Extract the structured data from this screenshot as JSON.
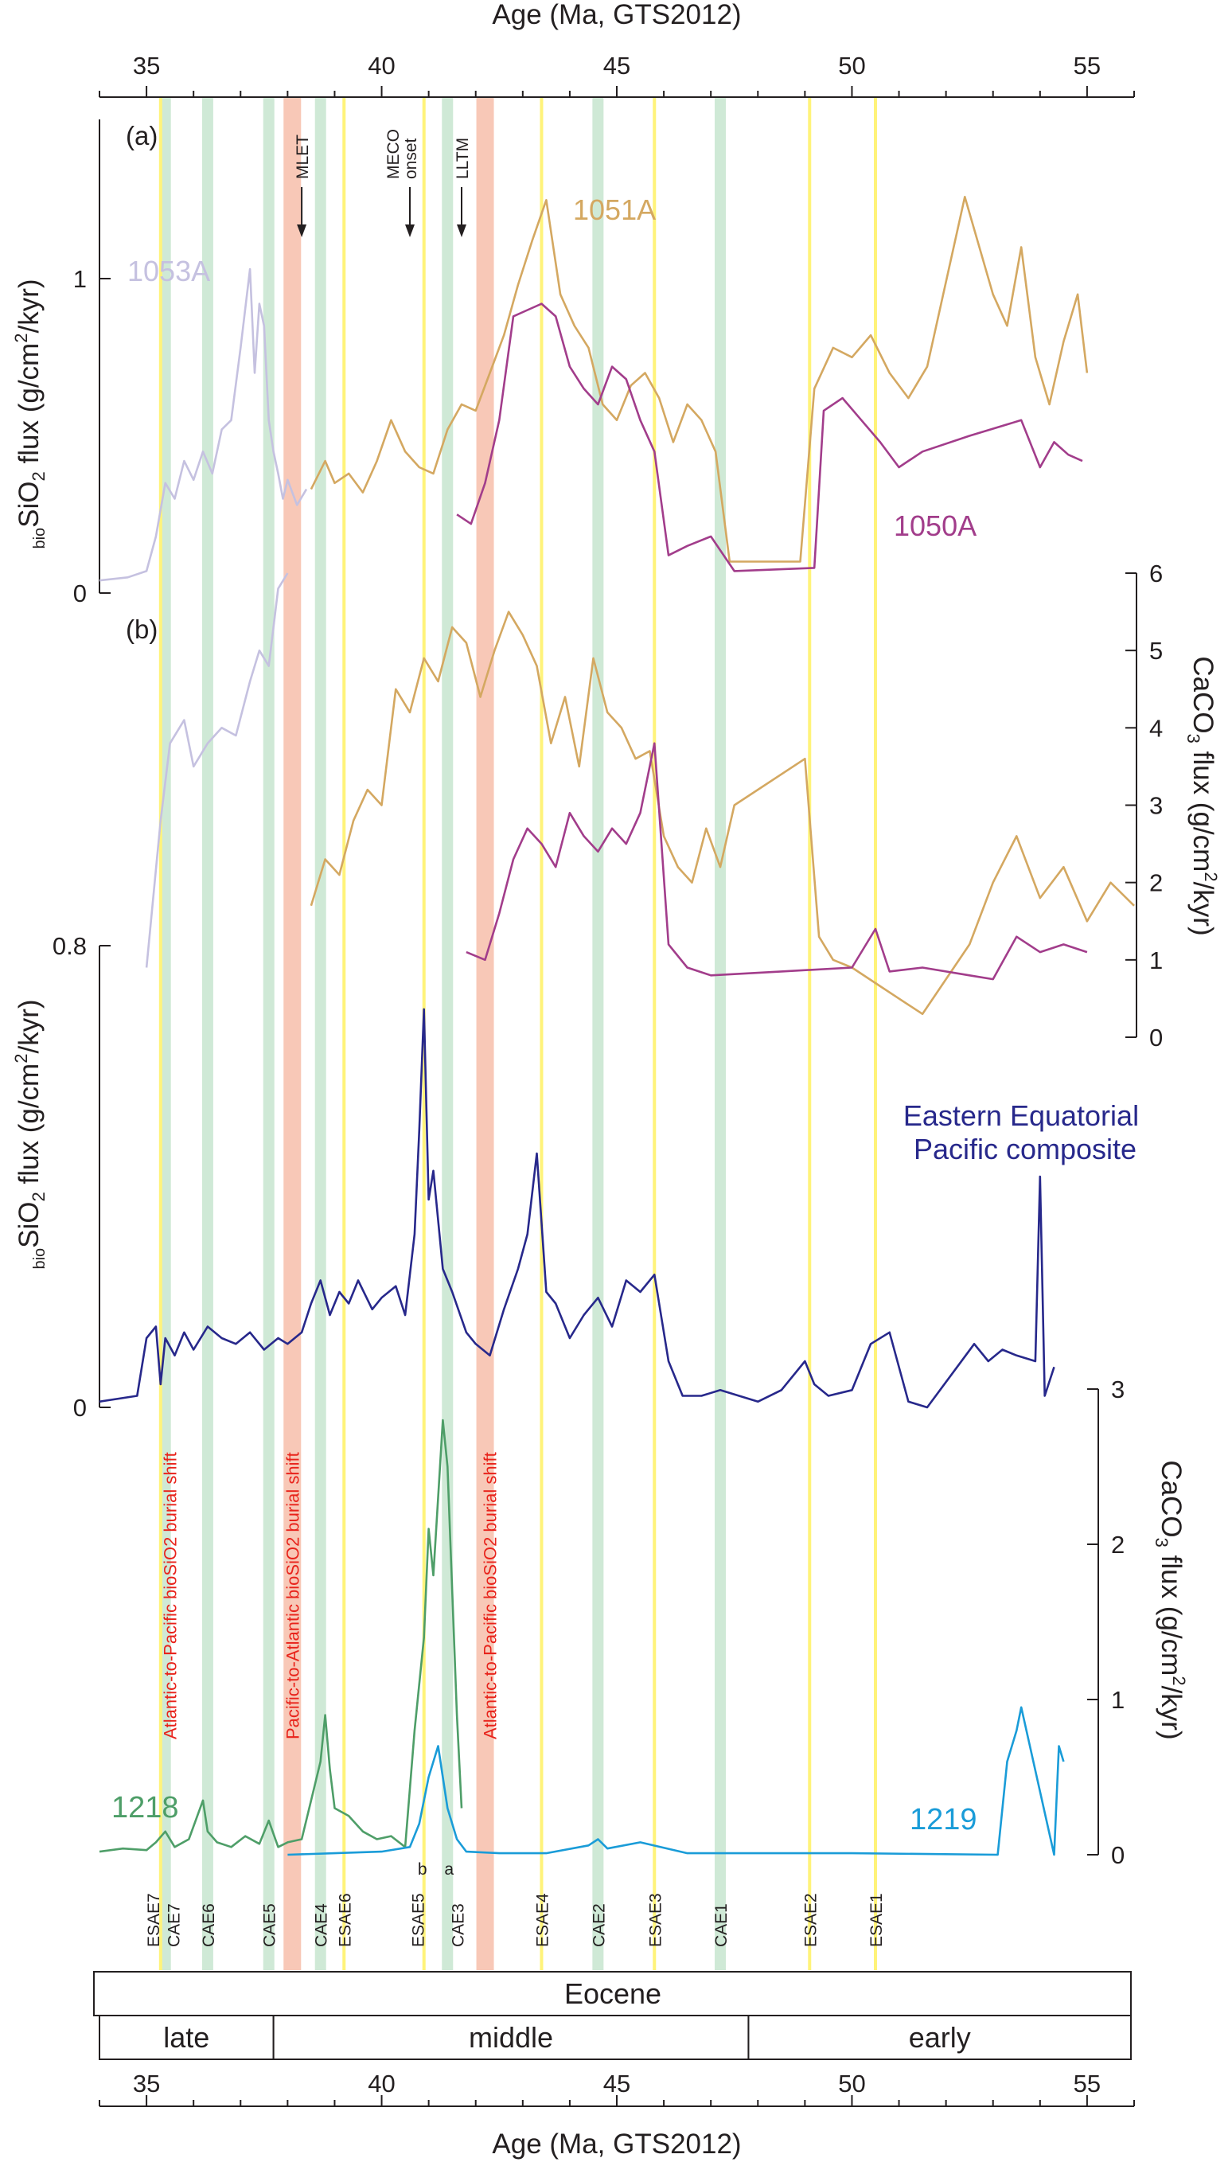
{
  "chart_data": {
    "type": "line",
    "title": "",
    "xlabel_top": "Age (Ma, GTS2012)",
    "xlabel_bottom": "Age (Ma, GTS2012)",
    "xlim": [
      34,
      56
    ],
    "xticks": [
      35,
      40,
      45,
      50,
      55
    ],
    "events": {
      "yellow": [
        {
          "name": "ESAE7",
          "age": 35.3
        },
        {
          "name": "ESAE6",
          "age": 39.2
        },
        {
          "name": "ESAE5",
          "age": 40.9
        },
        {
          "name": "ESAE4",
          "age": 43.4
        },
        {
          "name": "ESAE3",
          "age": 45.8
        },
        {
          "name": "ESAE2",
          "age": 49.1
        },
        {
          "name": "ESAE1",
          "age": 50.5
        }
      ],
      "green": [
        {
          "name": "CAE7",
          "age": 35.4
        },
        {
          "name": "CAE6",
          "age": 36.3
        },
        {
          "name": "CAE5",
          "age": 37.6
        },
        {
          "name": "CAE4",
          "age": 38.7
        },
        {
          "name": "CAE3",
          "age": 41.4
        },
        {
          "name": "CAE2",
          "age": 44.6
        },
        {
          "name": "CAE1",
          "age": 47.2
        }
      ],
      "red": [
        {
          "name": "MLET",
          "age": 38.1
        },
        {
          "name": "LLTM",
          "age": 42.2
        }
      ]
    },
    "event_label_b": "b",
    "event_label_a": "a",
    "arrows": [
      {
        "label": "MLET",
        "age": 38.3
      },
      {
        "label": "MECO onset",
        "age": 40.6
      },
      {
        "label": "LLTM",
        "age": 41.7
      }
    ],
    "burial_labels": [
      {
        "text": "Atlantic-to-Pacific bioSiO2 burial shift",
        "age": 35.5
      },
      {
        "text": "Pacific-to-Atlantic bioSiO2 burial shift",
        "age": 38.1
      },
      {
        "text": "Atlantic-to-Pacific bioSiO2 burial shift",
        "age": 42.3
      }
    ],
    "panels": [
      {
        "id": "a",
        "label": "(a)",
        "ylabel": "bioSiO2 flux (g/cm2/kyr)",
        "ylim": [
          0,
          1.45
        ],
        "yticks": [
          0,
          1
        ],
        "series": [
          {
            "name": "1053A",
            "color": "#c5c1e0",
            "x": [
              34,
              34.6,
              35.0,
              35.2,
              35.4,
              35.6,
              35.8,
              36.0,
              36.2,
              36.4,
              36.6,
              36.8,
              37.0,
              37.2,
              37.3,
              37.4,
              37.5,
              37.6,
              37.7,
              37.8,
              37.9,
              38.0,
              38.2,
              38.4
            ],
            "y": [
              0.04,
              0.05,
              0.07,
              0.18,
              0.35,
              0.3,
              0.42,
              0.36,
              0.45,
              0.38,
              0.52,
              0.55,
              0.78,
              1.03,
              0.7,
              0.92,
              0.85,
              0.55,
              0.45,
              0.38,
              0.3,
              0.36,
              0.28,
              0.33
            ]
          },
          {
            "name": "1051A",
            "color": "#d4a861",
            "x": [
              38.5,
              38.8,
              39.0,
              39.3,
              39.6,
              39.9,
              40.2,
              40.5,
              40.8,
              41.1,
              41.4,
              41.7,
              42.0,
              42.3,
              42.6,
              42.9,
              43.2,
              43.5,
              43.8,
              44.1,
              44.4,
              44.7,
              45.0,
              45.3,
              45.6,
              45.9,
              46.2,
              46.5,
              46.8,
              47.1,
              47.4,
              48.9,
              49.2,
              49.6,
              50.0,
              50.4,
              50.8,
              51.2,
              51.6,
              52.4,
              53.0,
              53.3,
              53.6,
              53.9,
              54.2,
              54.5,
              54.8,
              55.0
            ],
            "y": [
              0.33,
              0.42,
              0.35,
              0.38,
              0.32,
              0.42,
              0.55,
              0.45,
              0.4,
              0.38,
              0.52,
              0.6,
              0.58,
              0.7,
              0.82,
              0.98,
              1.12,
              1.25,
              0.95,
              0.85,
              0.78,
              0.6,
              0.55,
              0.66,
              0.7,
              0.62,
              0.48,
              0.6,
              0.55,
              0.45,
              0.1,
              0.1,
              0.65,
              0.78,
              0.75,
              0.82,
              0.7,
              0.62,
              0.72,
              1.26,
              0.95,
              0.85,
              1.1,
              0.75,
              0.6,
              0.8,
              0.95,
              0.7
            ]
          },
          {
            "name": "1050A",
            "color": "#a23d8b",
            "x": [
              41.6,
              41.9,
              42.2,
              42.5,
              42.8,
              43.1,
              43.4,
              43.7,
              44.0,
              44.3,
              44.6,
              44.9,
              45.2,
              45.5,
              45.8,
              46.1,
              46.5,
              47.0,
              47.5,
              49.2,
              49.4,
              49.8,
              50.2,
              50.6,
              51.0,
              51.5,
              52.5,
              53.6,
              54.0,
              54.3,
              54.6,
              54.9
            ],
            "y": [
              0.25,
              0.22,
              0.35,
              0.55,
              0.88,
              0.9,
              0.92,
              0.88,
              0.72,
              0.65,
              0.6,
              0.72,
              0.68,
              0.55,
              0.45,
              0.12,
              0.15,
              0.18,
              0.07,
              0.08,
              0.58,
              0.62,
              0.55,
              0.48,
              0.4,
              0.45,
              0.5,
              0.55,
              0.4,
              0.48,
              0.44,
              0.42
            ]
          }
        ],
        "series_labels": [
          "1053A",
          "1051A",
          "1050A"
        ]
      },
      {
        "id": "b",
        "label": "(b)",
        "ylabel": "CaCO3 flux (g/cm2/kyr)",
        "ylim": [
          0,
          6
        ],
        "yticks": [
          0,
          1,
          2,
          3,
          4,
          5,
          6
        ],
        "series": [
          {
            "name": "1053A",
            "color": "#c5c1e0",
            "x": [
              35.0,
              35.3,
              35.5,
              35.8,
              36.0,
              36.3,
              36.6,
              36.9,
              37.2,
              37.4,
              37.6,
              37.8,
              38.0
            ],
            "y": [
              0.9,
              2.8,
              3.8,
              4.1,
              3.5,
              3.8,
              4.0,
              3.9,
              4.6,
              5.0,
              4.8,
              5.8,
              6.0
            ]
          },
          {
            "name": "1051A",
            "color": "#d4a861",
            "x": [
              38.5,
              38.8,
              39.1,
              39.4,
              39.7,
              40.0,
              40.3,
              40.6,
              40.9,
              41.2,
              41.5,
              41.8,
              42.1,
              42.4,
              42.7,
              43.0,
              43.3,
              43.6,
              43.9,
              44.2,
              44.5,
              44.8,
              45.1,
              45.4,
              45.7,
              46.0,
              46.3,
              46.6,
              46.9,
              47.2,
              47.5,
              49.0,
              49.3,
              49.6,
              50.0,
              50.5,
              51.0,
              51.5,
              52.5,
              53.0,
              53.5,
              54.0,
              54.5,
              55.0,
              55.5,
              56.0
            ],
            "y": [
              1.7,
              2.3,
              2.1,
              2.8,
              3.2,
              3.0,
              4.5,
              4.2,
              4.9,
              4.6,
              5.3,
              5.1,
              4.4,
              5.0,
              5.5,
              5.2,
              4.8,
              3.8,
              4.4,
              3.5,
              4.9,
              4.2,
              4.0,
              3.6,
              3.7,
              2.6,
              2.2,
              2.0,
              2.7,
              2.2,
              3.0,
              3.6,
              1.3,
              1.0,
              0.9,
              0.7,
              0.5,
              0.3,
              1.2,
              2.0,
              2.6,
              1.8,
              2.2,
              1.5,
              2.0,
              1.7
            ]
          },
          {
            "name": "1050A",
            "color": "#a23d8b",
            "x": [
              41.8,
              42.2,
              42.5,
              42.8,
              43.1,
              43.4,
              43.7,
              44.0,
              44.3,
              44.6,
              44.9,
              45.2,
              45.5,
              45.8,
              46.1,
              46.5,
              47.0,
              48.5,
              50.0,
              50.5,
              50.8,
              51.5,
              52.5,
              53.0,
              53.5,
              54.0,
              54.5,
              55.0
            ],
            "y": [
              1.1,
              1.0,
              1.6,
              2.3,
              2.7,
              2.5,
              2.2,
              2.9,
              2.6,
              2.4,
              2.7,
              2.5,
              2.9,
              3.8,
              1.2,
              0.9,
              0.8,
              0.85,
              0.9,
              1.4,
              0.85,
              0.9,
              0.8,
              0.75,
              1.3,
              1.1,
              1.2,
              1.1
            ]
          }
        ]
      },
      {
        "id": "c",
        "label": "",
        "ylabel": "bioSiO2 flux (g/cm2/kyr)",
        "ylim": [
          0,
          0.8
        ],
        "yticks": [
          0,
          0.8
        ],
        "series_label": "Eastern Equatorial Pacific composite",
        "series": [
          {
            "name": "Eastern Equatorial Pacific composite",
            "color": "#27288b",
            "x": [
              34.0,
              34.8,
              35.0,
              35.2,
              35.3,
              35.4,
              35.6,
              35.8,
              36.0,
              36.3,
              36.6,
              36.9,
              37.2,
              37.5,
              37.8,
              38.0,
              38.3,
              38.5,
              38.7,
              38.9,
              39.1,
              39.3,
              39.5,
              39.8,
              40.0,
              40.3,
              40.5,
              40.7,
              40.8,
              40.9,
              41.0,
              41.1,
              41.3,
              41.5,
              41.8,
              42.0,
              42.3,
              42.6,
              42.9,
              43.1,
              43.3,
              43.5,
              43.7,
              44.0,
              44.3,
              44.6,
              44.9,
              45.2,
              45.5,
              45.8,
              46.1,
              46.4,
              46.8,
              47.2,
              47.6,
              48.0,
              48.5,
              49.0,
              49.2,
              49.5,
              50.0,
              50.4,
              50.8,
              51.2,
              51.6,
              52.6,
              52.9,
              53.2,
              53.5,
              53.9,
              54.0,
              54.1,
              54.3
            ],
            "y": [
              0.01,
              0.02,
              0.12,
              0.14,
              0.04,
              0.12,
              0.09,
              0.13,
              0.1,
              0.14,
              0.12,
              0.11,
              0.13,
              0.1,
              0.12,
              0.11,
              0.13,
              0.18,
              0.22,
              0.16,
              0.2,
              0.18,
              0.22,
              0.17,
              0.19,
              0.21,
              0.16,
              0.3,
              0.48,
              0.69,
              0.36,
              0.41,
              0.24,
              0.2,
              0.13,
              0.11,
              0.09,
              0.17,
              0.24,
              0.3,
              0.44,
              0.2,
              0.18,
              0.12,
              0.16,
              0.19,
              0.14,
              0.22,
              0.2,
              0.23,
              0.08,
              0.02,
              0.02,
              0.03,
              0.02,
              0.01,
              0.03,
              0.08,
              0.04,
              0.02,
              0.03,
              0.11,
              0.13,
              0.01,
              0.0,
              0.11,
              0.08,
              0.1,
              0.09,
              0.08,
              0.4,
              0.02,
              0.07
            ]
          }
        ]
      },
      {
        "id": "d",
        "label": "",
        "ylabel": "CaCO3 flux (g/cm2/kyr)",
        "ylim": [
          0,
          3
        ],
        "yticks": [
          0,
          1,
          2,
          3
        ],
        "series": [
          {
            "name": "1218",
            "color": "#4e9e68",
            "x": [
              34.0,
              34.5,
              35.0,
              35.2,
              35.4,
              35.6,
              35.9,
              36.2,
              36.3,
              36.5,
              36.8,
              37.1,
              37.4,
              37.6,
              37.8,
              38.0,
              38.3,
              38.5,
              38.7,
              38.8,
              38.9,
              39.0,
              39.3,
              39.6,
              39.9,
              40.2,
              40.5,
              40.7,
              40.9,
              41.0,
              41.1,
              41.2,
              41.3,
              41.4,
              41.5,
              41.6,
              41.7
            ],
            "y": [
              0.02,
              0.04,
              0.03,
              0.08,
              0.15,
              0.05,
              0.1,
              0.35,
              0.15,
              0.08,
              0.05,
              0.12,
              0.07,
              0.22,
              0.05,
              0.08,
              0.1,
              0.35,
              0.6,
              0.9,
              0.55,
              0.3,
              0.25,
              0.15,
              0.1,
              0.12,
              0.05,
              0.8,
              1.4,
              2.1,
              1.8,
              2.3,
              2.8,
              2.5,
              1.7,
              0.9,
              0.3
            ]
          },
          {
            "name": "1219",
            "color": "#1a9cd8",
            "x": [
              38.0,
              39.0,
              40.0,
              40.6,
              40.8,
              41.0,
              41.2,
              41.4,
              41.6,
              41.8,
              42.5,
              43.5,
              44.4,
              44.6,
              44.8,
              45.5,
              46.5,
              47.5,
              48.5,
              50.0,
              53.1,
              53.3,
              53.5,
              53.6,
              54.3,
              54.4,
              54.5
            ],
            "y": [
              0.0,
              0.01,
              0.02,
              0.05,
              0.2,
              0.5,
              0.7,
              0.3,
              0.1,
              0.02,
              0.01,
              0.01,
              0.06,
              0.1,
              0.04,
              0.08,
              0.01,
              0.01,
              0.01,
              0.01,
              0.0,
              0.6,
              0.8,
              0.95,
              0.0,
              0.7,
              0.6
            ]
          }
        ],
        "series_labels": [
          "1218",
          "1219"
        ]
      }
    ],
    "epochs": {
      "top": "Eocene",
      "subdivisions": [
        {
          "name": "late",
          "from": 34.0,
          "to": 37.7
        },
        {
          "name": "middle",
          "from": 37.7,
          "to": 47.8
        },
        {
          "name": "early",
          "from": 47.8,
          "to": 56.0
        }
      ]
    }
  }
}
